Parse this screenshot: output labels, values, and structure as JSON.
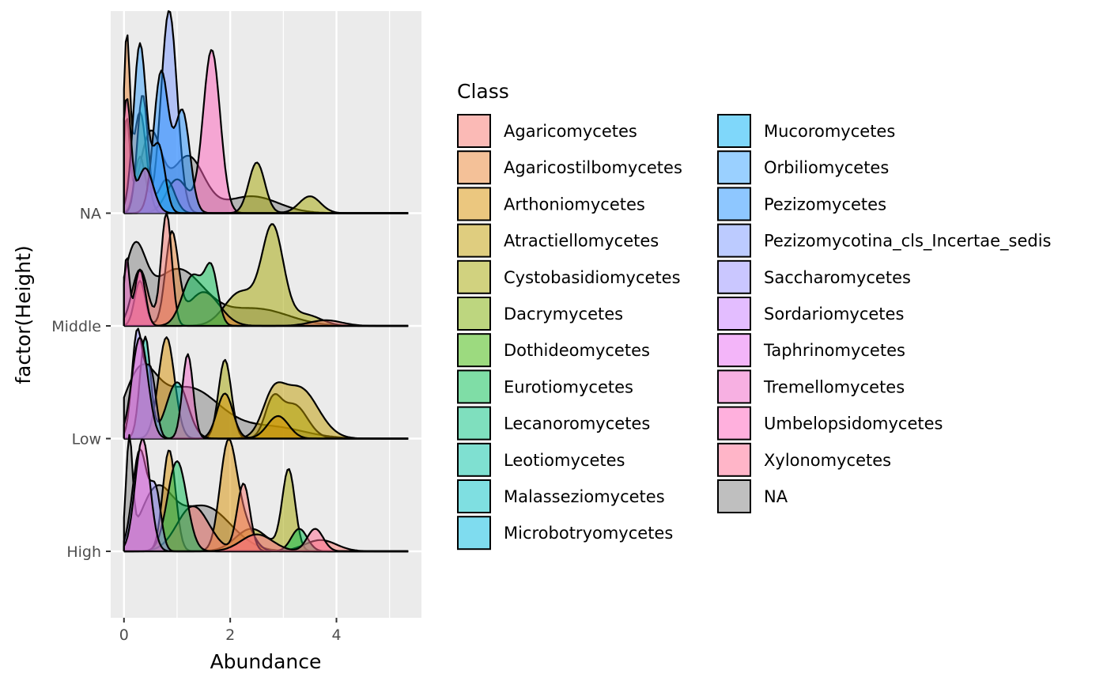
{
  "chart_data": {
    "type": "area",
    "subtype": "ridgeline-density",
    "xlabel": "Abundance",
    "ylabel": "factor(Height)",
    "xlim": [
      -0.25,
      5.6
    ],
    "x_ticks": [
      0,
      2,
      4
    ],
    "x_minor_ticks": [
      1,
      3,
      5
    ],
    "categories": [
      "High",
      "Low",
      "Middle",
      "NA"
    ],
    "grid": true,
    "legend": {
      "title": "Class",
      "position": "right",
      "columns": 2,
      "entries": [
        {
          "label": "Agaricomycetes",
          "color": "#F8766D"
        },
        {
          "label": "Agaricostilbomycetes",
          "color": "#EA8331"
        },
        {
          "label": "Arthoniomycetes",
          "color": "#D89000"
        },
        {
          "label": "Atractiellomycetes",
          "color": "#C09B00"
        },
        {
          "label": "Cystobasidiomycetes",
          "color": "#A3A500"
        },
        {
          "label": "Dacrymycetes",
          "color": "#7CAE00"
        },
        {
          "label": "Dothideomycetes",
          "color": "#39B600"
        },
        {
          "label": "Eurotiomycetes",
          "color": "#00BB4E"
        },
        {
          "label": "Lecanoromycetes",
          "color": "#00BF7D"
        },
        {
          "label": "Leotiomycetes",
          "color": "#00C1A3"
        },
        {
          "label": "Malasseziomycetes",
          "color": "#00BFC4"
        },
        {
          "label": "Microbotryomycetes",
          "color": "#00BAE0"
        },
        {
          "label": "Mucoromycetes",
          "color": "#00B0F6"
        },
        {
          "label": "Orbiliomycetes",
          "color": "#35A2FF"
        },
        {
          "label": "Pezizomycetes",
          "color": "#1E90FF"
        },
        {
          "label": "Pezizomycotina_cls_Incertae_sedis",
          "color": "#7997FF"
        },
        {
          "label": "Saccharomycetes",
          "color": "#9590FF"
        },
        {
          "label": "Sordariomycetes",
          "color": "#C77CFF"
        },
        {
          "label": "Taphrinomycetes",
          "color": "#E76BF3"
        },
        {
          "label": "Tremellomycetes",
          "color": "#F062C6"
        },
        {
          "label": "Umbelopsidomycetes",
          "color": "#FF62BC"
        },
        {
          "label": "Xylonomycetes",
          "color": "#FF6C91"
        },
        {
          "label": "NA",
          "color": "#7F7F7F"
        }
      ]
    },
    "series": [
      {
        "name": "NA",
        "ridges": [
          {
            "category": "NA",
            "peaks": [
              [
                0.05,
                0.8,
                0.06
              ],
              [
                0.5,
                0.7,
                0.2
              ],
              [
                1.2,
                0.5,
                0.3
              ],
              [
                2.4,
                0.15,
                0.5
              ]
            ],
            "color": "#7F7F7F"
          },
          {
            "category": "Middle",
            "peaks": [
              [
                0.2,
                0.6,
                0.2
              ],
              [
                1.0,
                0.5,
                0.5
              ],
              [
                2.5,
                0.15,
                0.6
              ]
            ],
            "color": "#7F7F7F"
          },
          {
            "category": "Low",
            "peaks": [
              [
                0.3,
                0.5,
                0.3
              ],
              [
                1.2,
                0.45,
                0.6
              ],
              [
                2.8,
                0.1,
                0.6
              ]
            ],
            "color": "#7F7F7F"
          },
          {
            "category": "High",
            "peaks": [
              [
                0.1,
                0.9,
                0.06
              ],
              [
                0.6,
                0.5,
                0.3
              ],
              [
                1.5,
                0.4,
                0.5
              ]
            ],
            "color": "#7F7F7F"
          }
        ]
      },
      {
        "name": "Pezizomycotina_cls_Incertae_sedis",
        "ridges": [
          {
            "category": "NA",
            "peaks": [
              [
                0.85,
                1.8,
                0.15
              ],
              [
                0.3,
                0.5,
                0.1
              ]
            ],
            "color": "#7997FF"
          }
        ]
      },
      {
        "name": "Umbelopsidomycetes",
        "ridges": [
          {
            "category": "NA",
            "peaks": [
              [
                1.65,
                1.45,
                0.16
              ],
              [
                1.0,
                0.3,
                0.2
              ]
            ],
            "color": "#FF62BC"
          }
        ]
      },
      {
        "name": "Cystobasidiomycetes",
        "ridges": [
          {
            "category": "NA",
            "peaks": [
              [
                2.5,
                0.45,
                0.15
              ],
              [
                3.5,
                0.15,
                0.2
              ]
            ],
            "color": "#A3A500"
          },
          {
            "category": "Middle",
            "peaks": [
              [
                2.8,
                0.85,
                0.2
              ],
              [
                2.2,
                0.3,
                0.3
              ],
              [
                3.4,
                0.1,
                0.3
              ]
            ],
            "color": "#A3A500"
          },
          {
            "category": "Low",
            "peaks": [
              [
                1.9,
                0.7,
                0.12
              ],
              [
                3.2,
                0.3,
                0.25
              ],
              [
                2.8,
                0.3,
                0.15
              ]
            ],
            "color": "#A3A500"
          },
          {
            "category": "High",
            "peaks": [
              [
                3.1,
                0.72,
                0.12
              ],
              [
                2.4,
                0.2,
                0.3
              ]
            ],
            "color": "#A3A500"
          }
        ]
      },
      {
        "name": "Atractiellomycetes",
        "ridges": [
          {
            "category": "Low",
            "peaks": [
              [
                3.3,
                0.45,
                0.35
              ],
              [
                2.8,
                0.3,
                0.2
              ]
            ],
            "color": "#C09B00"
          }
        ]
      },
      {
        "name": "Arthoniomycetes",
        "ridges": [
          {
            "category": "Low",
            "peaks": [
              [
                0.8,
                0.9,
                0.15
              ],
              [
                1.9,
                0.4,
                0.15
              ],
              [
                2.9,
                0.2,
                0.2
              ]
            ],
            "color": "#D89000"
          },
          {
            "category": "High",
            "peaks": [
              [
                0.85,
                0.9,
                0.12
              ],
              [
                1.95,
                0.85,
                0.15
              ],
              [
                2.2,
                0.3,
                0.2
              ]
            ],
            "color": "#D89000"
          }
        ]
      },
      {
        "name": "Agaricostilbomycetes",
        "ridges": [
          {
            "category": "Middle",
            "peaks": [
              [
                0.9,
                0.8,
                0.12
              ],
              [
                0.3,
                0.4,
                0.1
              ],
              [
                1.5,
                0.3,
                0.3
              ]
            ],
            "color": "#EA8331"
          },
          {
            "category": "NA",
            "peaks": [
              [
                0.05,
                1.5,
                0.06
              ],
              [
                0.3,
                0.9,
                0.12
              ]
            ],
            "color": "#EA8331"
          }
        ]
      },
      {
        "name": "Agaricomycetes",
        "ridges": [
          {
            "category": "Middle",
            "peaks": [
              [
                0.8,
                1.0,
                0.1
              ],
              [
                0.3,
                0.5,
                0.15
              ],
              [
                3.8,
                0.05,
                0.3
              ]
            ],
            "color": "#F8766D"
          },
          {
            "category": "High",
            "peaks": [
              [
                2.25,
                0.6,
                0.12
              ],
              [
                1.3,
                0.4,
                0.3
              ],
              [
                3.7,
                0.1,
                0.3
              ]
            ],
            "color": "#F8766D"
          }
        ]
      },
      {
        "name": "Eurotiomycetes",
        "ridges": [
          {
            "category": "Middle",
            "peaks": [
              [
                1.3,
                0.45,
                0.2
              ],
              [
                1.65,
                0.45,
                0.12
              ]
            ],
            "color": "#00BB4E"
          },
          {
            "category": "High",
            "peaks": [
              [
                1.0,
                0.8,
                0.18
              ],
              [
                3.3,
                0.2,
                0.15
              ]
            ],
            "color": "#00BB4E"
          }
        ]
      },
      {
        "name": "Leotiomycetes",
        "ridges": [
          {
            "category": "NA",
            "peaks": [
              [
                0.35,
                1.05,
                0.1
              ],
              [
                0.8,
                0.3,
                0.15
              ]
            ],
            "color": "#00C1A3"
          },
          {
            "category": "Low",
            "peaks": [
              [
                0.4,
                0.9,
                0.1
              ],
              [
                1.0,
                0.5,
                0.2
              ]
            ],
            "color": "#00C1A3"
          }
        ]
      },
      {
        "name": "Pezizomycetes",
        "ridges": [
          {
            "category": "NA",
            "peaks": [
              [
                0.7,
                1.25,
                0.14
              ],
              [
                1.1,
                0.9,
                0.14
              ]
            ],
            "color": "#1E90FF"
          }
        ]
      },
      {
        "name": "Orbiliomycetes",
        "ridges": [
          {
            "category": "NA",
            "peaks": [
              [
                0.3,
                1.5,
                0.12
              ],
              [
                0.65,
                0.6,
                0.12
              ]
            ],
            "color": "#35A2FF"
          }
        ]
      },
      {
        "name": "Saccharomycetes",
        "ridges": [
          {
            "category": "Low",
            "peaks": [
              [
                0.25,
                0.95,
                0.1
              ],
              [
                0.5,
                0.6,
                0.1
              ]
            ],
            "color": "#9590FF"
          },
          {
            "category": "High",
            "peaks": [
              [
                0.3,
                0.9,
                0.14
              ],
              [
                0.6,
                0.5,
                0.1
              ]
            ],
            "color": "#9590FF"
          }
        ]
      },
      {
        "name": "Tremellomycetes",
        "ridges": [
          {
            "category": "NA",
            "peaks": [
              [
                0.05,
                1.0,
                0.08
              ],
              [
                0.4,
                0.4,
                0.15
              ]
            ],
            "color": "#F062C6"
          },
          {
            "category": "Middle",
            "peaks": [
              [
                0.05,
                0.6,
                0.05
              ],
              [
                0.3,
                0.5,
                0.1
              ]
            ],
            "color": "#F062C6"
          },
          {
            "category": "Low",
            "peaks": [
              [
                1.2,
                0.75,
                0.1
              ],
              [
                0.3,
                0.9,
                0.15
              ]
            ],
            "color": "#F062C6"
          },
          {
            "category": "High",
            "peaks": [
              [
                0.35,
                1.0,
                0.14
              ]
            ],
            "color": "#F062C6"
          }
        ]
      },
      {
        "name": "Xylonomycetes",
        "ridges": [
          {
            "category": "High",
            "peaks": [
              [
                3.6,
                0.2,
                0.15
              ],
              [
                2.5,
                0.15,
                0.3
              ]
            ],
            "color": "#FF6C91"
          }
        ]
      }
    ]
  }
}
